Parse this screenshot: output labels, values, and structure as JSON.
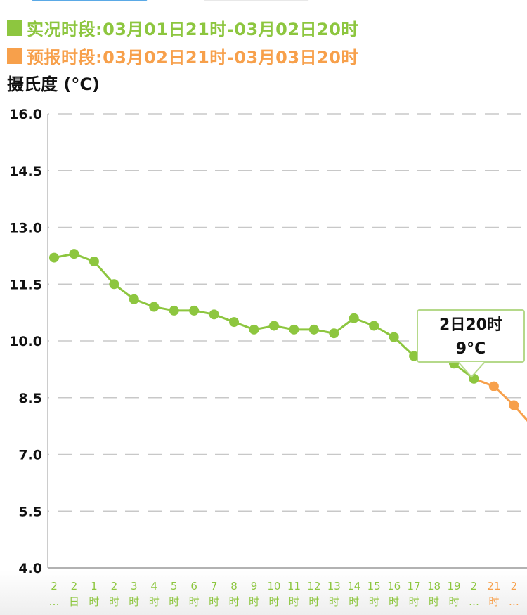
{
  "legend": {
    "observed": {
      "label": "实况时段:03月01日21时-03月02日20时",
      "color": "#8dc63f"
    },
    "forecast": {
      "label": "预报时段:03月02日21时-03月03日20时",
      "color": "#f7a04b"
    }
  },
  "tooltip": {
    "time": "2日20时",
    "value": "9°C"
  },
  "chart_data": {
    "type": "line",
    "ylabel": "摄氏度 (°C)",
    "ylim": [
      4.0,
      16.0
    ],
    "yticks": [
      "16.0",
      "14.5",
      "13.0",
      "11.5",
      "10.0",
      "8.5",
      "7.0",
      "5.5",
      "4.0"
    ],
    "grid": true,
    "x_labels": [
      [
        "2",
        "…"
      ],
      [
        "2",
        "日"
      ],
      [
        "1",
        "时"
      ],
      [
        "2",
        "时"
      ],
      [
        "3",
        "时"
      ],
      [
        "4",
        "时"
      ],
      [
        "5",
        "时"
      ],
      [
        "6",
        "时"
      ],
      [
        "7",
        "时"
      ],
      [
        "8",
        "时"
      ],
      [
        "9",
        "时"
      ],
      [
        "10",
        "时"
      ],
      [
        "11",
        "时"
      ],
      [
        "12",
        "时"
      ],
      [
        "13",
        "时"
      ],
      [
        "14",
        "时"
      ],
      [
        "15",
        "时"
      ],
      [
        "16",
        "时"
      ],
      [
        "17",
        "时"
      ],
      [
        "18",
        "时"
      ],
      [
        "19",
        "时"
      ],
      [
        "2",
        "…"
      ],
      [
        "21",
        "时"
      ],
      [
        "2",
        "…"
      ]
    ],
    "series": [
      {
        "kind": "observed",
        "color": "#8dc63f",
        "start_index": 0,
        "values": [
          12.2,
          12.3,
          12.1,
          11.5,
          11.1,
          10.9,
          10.8,
          10.8,
          10.7,
          10.5,
          10.3,
          10.4,
          10.3,
          10.3,
          10.2,
          10.6,
          10.4,
          10.1,
          9.6,
          9.6,
          9.4,
          9.0
        ]
      },
      {
        "kind": "forecast",
        "color": "#f7a04b",
        "start_index": 21,
        "values": [
          9.0,
          8.8,
          8.3,
          7.7
        ]
      }
    ],
    "forecast_label_from_index": 22
  }
}
